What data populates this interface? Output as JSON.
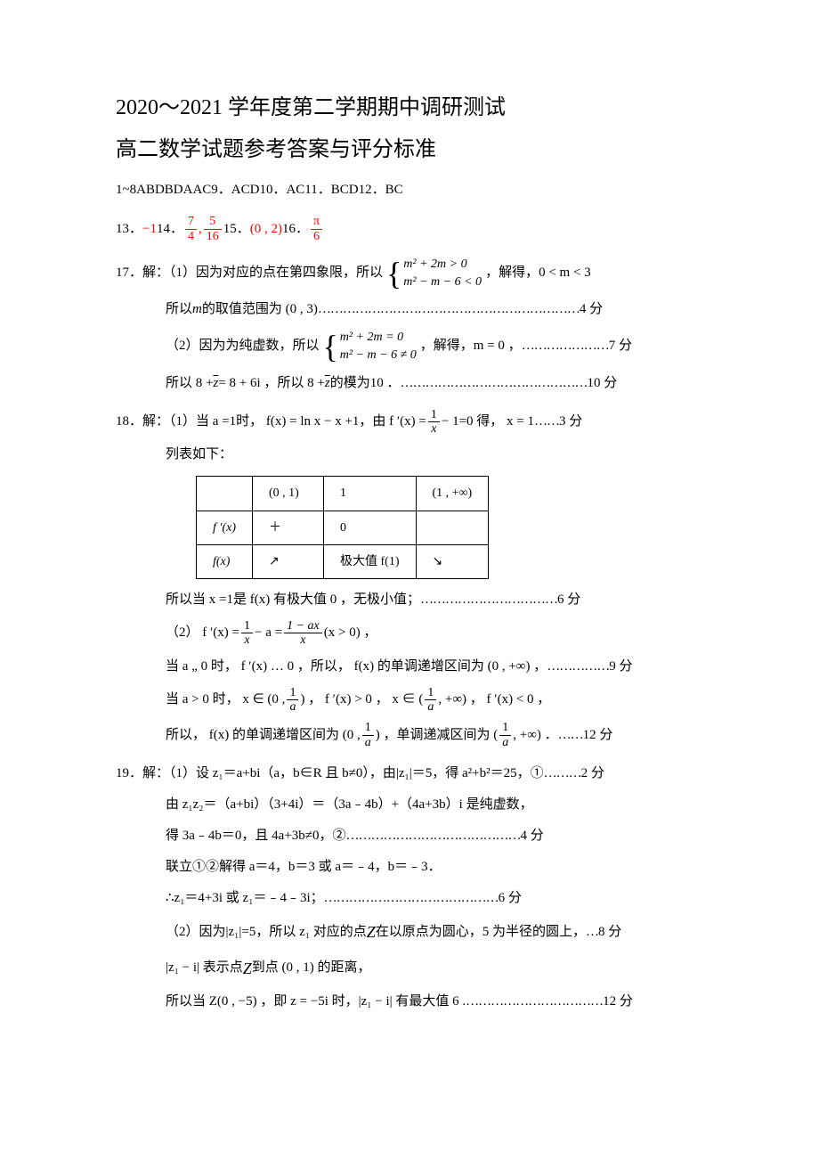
{
  "titles": {
    "line1": "2020～2021 学年度第二学期期中调研测试",
    "line2": "高二数学试题参考答案与评分标准"
  },
  "mc": "1~8ABDBDAAC9．ACD10．AC11．BCD12．BC",
  "fill": {
    "p13_label": "13．",
    "p13_val": "−1",
    "p14_label": "14．",
    "p14_a_num": "7",
    "p14_a_den": "4",
    "p14_b_num": "5",
    "p14_b_den": "16",
    "p15_label": "15．",
    "p15_val": "(0 , 2)",
    "p16_label": "16．",
    "p16_num": "π",
    "p16_den": "6"
  },
  "q17": {
    "lead": "17．解：（1）因为对应的点在第四象限，所以",
    "sys1_a": "m² + 2m > 0",
    "sys1_b": "m² − m − 6 < 0",
    "after_sys1": "，解得，0 < m < 3",
    "range_line_a": "所以 ",
    "range_m": "m",
    "range_line_b": " 的取值范围为 (0 , 3)",
    "dots1": "………………………………………………………",
    "pts1": "4 分",
    "part2_lead": "（2）因为为纯虚数，所以",
    "sys2_a": "m² + 2m = 0",
    "sys2_b": "m² − m − 6 ≠ 0",
    "after_sys2": "，解得，m = 0 ，",
    "dots2": "…………………",
    "pts2": "7 分",
    "mod_a": "所以 8 + ",
    "zbar1": "z",
    "mod_b": " = 8 + 6i ，所以 8 + ",
    "zbar2": "z",
    "mod_c": " 的模为10 ．",
    "dots3": "………………………………………",
    "pts3": "10 分"
  },
  "q18": {
    "lead_a": "18．解：（1）当 a =1时， f(x) = ln x − x +1，由 f ′(x) = ",
    "f_num": "1",
    "f_den": "x",
    "lead_b": " − 1=0 得， x = 1",
    "dots0": "……",
    "pts0": "3 分",
    "listline": "列表如下：",
    "table": {
      "h0": "",
      "h1": "(0 , 1)",
      "h2": "1",
      "h3": "(1 , +∞)",
      "r1c0": "f ′(x)",
      "r1c1": "＋",
      "r1c2": "0",
      "r1c3": "",
      "r2c0": "f(x)",
      "r2c1_arrow": "up",
      "r2c2": "极大值 f(1)",
      "r2c3_arrow": "down"
    },
    "max_line": "所以当 x =1是 f(x) 有极大值 0 ，无极小值；",
    "dots1": "……………………………",
    "pts1": "6 分",
    "p2_lead": "（2） f ′(x) = ",
    "p2_a_num": "1",
    "p2_a_den": "x",
    "p2_mid1": " − a = ",
    "p2_b_num": "1 − ax",
    "p2_b_den": "x",
    "p2_tail": " (x > 0) ，",
    "case1_a": "当 a „ 0 时， f ′(x) … 0 ，所以， f(x) 的单调递增区间为 (0 , +∞) ，",
    "dots2": "……………",
    "pts2": "9 分",
    "case2_lead": "当 a > 0 时， x ∈ (0 , ",
    "case2_f1_num": "1",
    "case2_f1_den": "a",
    "case2_mid1": ") ， f ′(x) > 0 ， x ∈ ( ",
    "case2_f2_num": "1",
    "case2_f2_den": "a",
    "case2_mid2": " , +∞) ， f ′(x) < 0 ，",
    "concl_a": "所以， f(x) 的单调递增区间为 (0 , ",
    "concl_f1_num": "1",
    "concl_f1_den": "a",
    "concl_b": ") ，单调递减区间为 ( ",
    "concl_f2_num": "1",
    "concl_f2_den": "a",
    "concl_c": " , +∞) ．",
    "dots3": "……",
    "pts3": "12 分"
  },
  "q19": {
    "l1": "19．解：（1）设 z₁＝a+bi（a，b∈R 且 b≠0），由|z₁|＝5，得 a²+b²＝25，①",
    "dots1": "………",
    "pts1": "2 分",
    "l2": "由 z₁z₂＝（a+bi）（3+4i）＝（3a﹣4b）+（4a+3b）i 是纯虚数，",
    "l3": "得 3a﹣4b＝0，且 4a+3b≠0，②",
    "dots3": "……………………………………",
    "pts3": "4 分",
    "l4": "联立①②解得 a＝4，b＝3 或 a＝﹣4，b＝﹣3．",
    "l5": "∴z₁＝4+3i 或 z₁＝﹣4﹣3i；",
    "dots5": "……………………………………",
    "pts5": "6 分",
    "l6a": "（2）因为|z₁|=5，所以 z₁ 对应的点 ",
    "l6z": "Z",
    "l6b": " 在以原点为圆心，5 为半径的圆上，",
    "dots6": "…",
    "pts6": "8 分",
    "l7a": "|z₁ − i| 表示点 ",
    "l7z": "Z",
    "l7b": " 到点 (0 , 1) 的距离，",
    "l8": "所以当 Z(0 , −5) ，即 z = −5i 时，|z₁ − i| 有最大值 6 .",
    "dots8": "……………………………",
    "pts8": "12 分"
  },
  "colors": {
    "red": "#ff0000",
    "text": "#000000",
    "bg": "#ffffff"
  }
}
